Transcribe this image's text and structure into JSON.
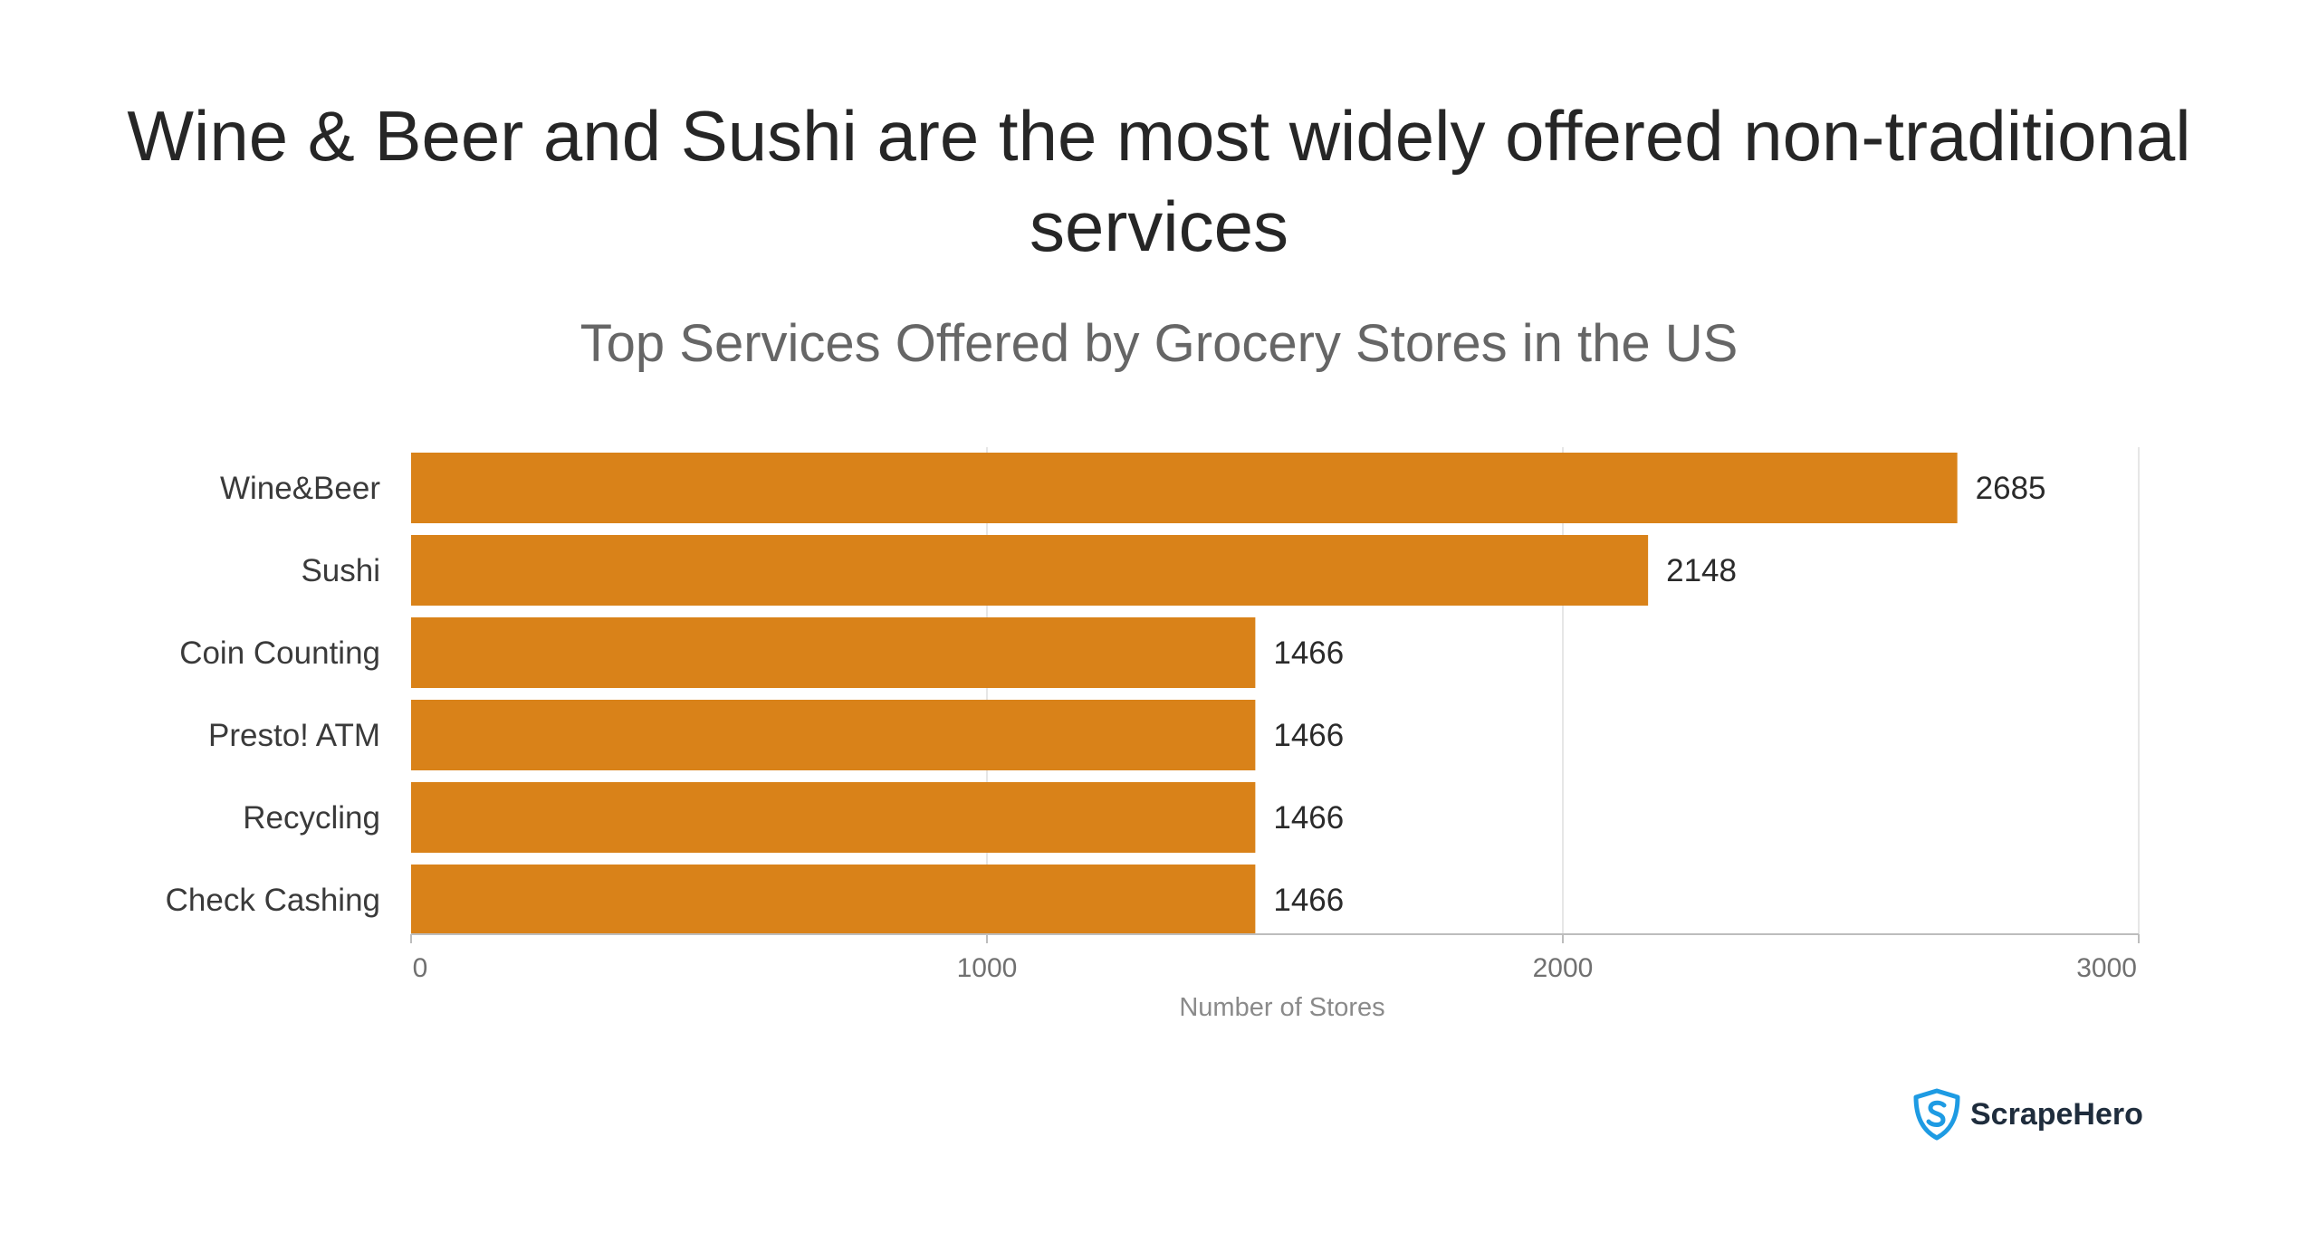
{
  "headline": "Wine & Beer and Sushi are the most widely offered non-traditional services",
  "chart_data": {
    "type": "bar",
    "orientation": "horizontal",
    "title": "Top Services Offered by Grocery Stores in the US",
    "categories": [
      "Wine&Beer",
      "Sushi",
      "Coin Counting",
      "Presto! ATM",
      "Recycling",
      "Check Cashing"
    ],
    "values": [
      2685,
      2148,
      1466,
      1466,
      1466,
      1466
    ],
    "xlabel": "Number of Stores",
    "ylabel": "",
    "xlim": [
      0,
      3000
    ],
    "xticks": [
      0,
      1000,
      2000,
      3000
    ],
    "xtick_labels": [
      "0",
      "1000",
      "2000",
      "3000"
    ],
    "grid": "vertical",
    "legend": "none",
    "bar_color": "#D98219"
  },
  "brand": {
    "name": "ScrapeHero",
    "icon": "shield-s-icon",
    "color": "#1E9BE3"
  }
}
